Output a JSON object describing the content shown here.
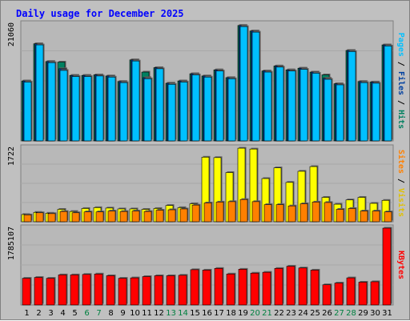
{
  "colors": {
    "background": "#c0c0c0",
    "panel": "#b8b8b8",
    "title": "#0000ff",
    "hits": "#0080a0",
    "hits_bar": "#008060",
    "files": "#00c0ff",
    "pages": "#00c0ff",
    "visits": "#ffff00",
    "sites": "#ff8000",
    "kbytes": "#ff0000",
    "weekend_day": "#008040",
    "weekday": "#000000"
  },
  "chart_data": {
    "type": "bar",
    "title": "Daily usage for December 2025",
    "categories": [
      "1",
      "2",
      "3",
      "4",
      "5",
      "6",
      "7",
      "8",
      "9",
      "10",
      "11",
      "12",
      "13",
      "14",
      "15",
      "16",
      "17",
      "18",
      "19",
      "20",
      "21",
      "22",
      "23",
      "24",
      "25",
      "26",
      "27",
      "28",
      "29",
      "30",
      "31"
    ],
    "weekend_days": [
      "6",
      "7",
      "13",
      "14",
      "20",
      "21",
      "27",
      "28"
    ],
    "panels": [
      {
        "id": "hits-files-pages",
        "max_label": "21060",
        "ymax": 21060,
        "side_label_parts": [
          {
            "text": "Pages",
            "color": "#00c0ff"
          },
          {
            "text": " / ",
            "color": "#000000"
          },
          {
            "text": "Files",
            "color": "#0040a0"
          },
          {
            "text": " / ",
            "color": "#000000"
          },
          {
            "text": "Hits",
            "color": "#008060"
          }
        ],
        "series": [
          {
            "name": "Hits",
            "color": "#008060",
            "values": [
              10800,
              17500,
              14300,
              14200,
              11800,
              11800,
              11900,
              11700,
              10700,
              14600,
              12400,
              13200,
              10400,
              10800,
              12100,
              11700,
              12800,
              11400,
              20800,
              19800,
              12600,
              13500,
              12800,
              13100,
              12400,
              11900,
              10300,
              16300,
              10700,
              10600,
              17300
            ]
          },
          {
            "name": "Files",
            "color": "#0040a0",
            "values": [
              10800,
              17500,
              14300,
              13000,
              11800,
              11800,
              11900,
              11700,
              10700,
              14600,
              11400,
              13200,
              10400,
              10800,
              12100,
              11700,
              12800,
              11400,
              20800,
              19800,
              12600,
              13500,
              12800,
              13100,
              12400,
              11300,
              10300,
              16300,
              10700,
              10600,
              17300
            ]
          },
          {
            "name": "Pages",
            "color": "#00c0ff",
            "values": [
              10600,
              17300,
              14100,
              12700,
              11600,
              11600,
              11700,
              11500,
              10500,
              14400,
              11200,
              13000,
              10200,
              10600,
              11900,
              11500,
              12600,
              11200,
              20600,
              19600,
              12400,
              13300,
              12600,
              12900,
              12200,
              11100,
              10100,
              16100,
              10500,
              10400,
              17100
            ]
          }
        ]
      },
      {
        "id": "visits-sites",
        "max_label": "1722",
        "ymax": 1722,
        "side_label_parts": [
          {
            "text": "Sites",
            "color": "#ff8000"
          },
          {
            "text": " / ",
            "color": "#000000"
          },
          {
            "text": "Visits",
            "color": "#e0c000"
          }
        ],
        "series": [
          {
            "name": "Visits",
            "color": "#ffff00",
            "values": [
              170,
              220,
              200,
              290,
              240,
              310,
              330,
              320,
              300,
              300,
              290,
              310,
              380,
              330,
              420,
              1510,
              1500,
              1150,
              1720,
              1700,
              1010,
              1260,
              920,
              1180,
              1290,
              570,
              410,
              510,
              570,
              430,
              500
            ]
          },
          {
            "name": "Sites",
            "color": "#ff8000",
            "values": [
              160,
              210,
              190,
              240,
              210,
              230,
              230,
              250,
              240,
              250,
              240,
              270,
              280,
              300,
              390,
              440,
              460,
              470,
              520,
              470,
              400,
              400,
              370,
              420,
              460,
              450,
              290,
              310,
              250,
              250,
              230
            ]
          }
        ]
      },
      {
        "id": "kbytes",
        "max_label": "1785107",
        "ymax": 1785107,
        "side_label_parts": [
          {
            "text": "KBytes",
            "color": "#ff0000"
          }
        ],
        "series": [
          {
            "name": "KBytes",
            "color": "#ff0000",
            "values": [
              620000,
              640000,
              620000,
              700000,
              700000,
              710000,
              720000,
              680000,
              620000,
              630000,
              660000,
              680000,
              680000,
              690000,
              820000,
              810000,
              850000,
              720000,
              830000,
              740000,
              760000,
              850000,
              900000,
              860000,
              810000,
              470000,
              510000,
              630000,
              530000,
              540000,
              1785107
            ]
          }
        ]
      }
    ]
  }
}
